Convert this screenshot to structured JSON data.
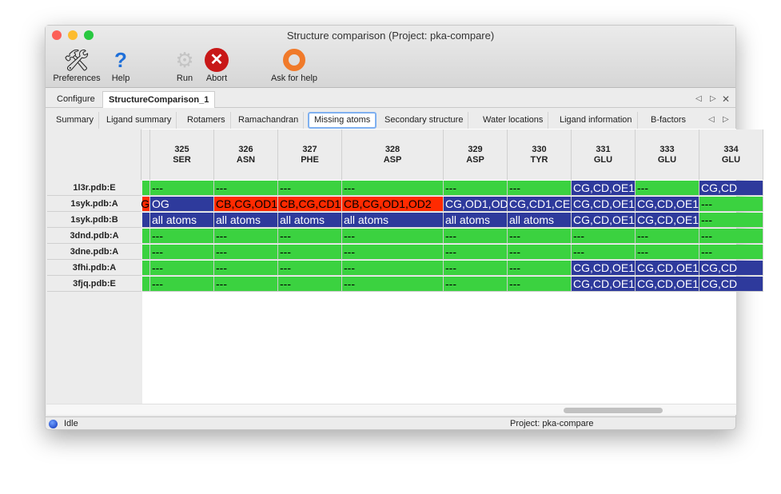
{
  "window": {
    "title": "Structure comparison (Project: pka-compare)"
  },
  "toolbar": [
    {
      "label": "Preferences",
      "icon": "tools-icon"
    },
    {
      "label": "Help",
      "icon": "help-icon"
    },
    {
      "label": "Run",
      "icon": "gear-icon"
    },
    {
      "label": "Abort",
      "icon": "abort-icon"
    },
    {
      "label": "Ask for help",
      "icon": "lifebuoy-icon"
    }
  ],
  "tabs": [
    "Configure",
    "StructureComparison_1"
  ],
  "subtabs": [
    "Summary",
    "Ligand summary",
    "Rotamers",
    "Ramachandran",
    "Missing atoms",
    "Secondary structure",
    "Water locations",
    "Ligand information",
    "B-factors"
  ],
  "selected_subtab": "Missing atoms",
  "colors": {
    "present": "#3bd240",
    "missing_side": "#2e3a9c",
    "missing_alt": "#ff2a00"
  },
  "table": {
    "columns": [
      {
        "num": "",
        "res": ""
      },
      {
        "num": "325",
        "res": "SER"
      },
      {
        "num": "326",
        "res": "ASN"
      },
      {
        "num": "327",
        "res": "PHE"
      },
      {
        "num": "328",
        "res": "ASP"
      },
      {
        "num": "329",
        "res": "ASP"
      },
      {
        "num": "330",
        "res": "TYR"
      },
      {
        "num": "331",
        "res": "GLU"
      },
      {
        "num": "333",
        "res": "GLU"
      },
      {
        "num": "334",
        "res": "GLU"
      }
    ],
    "rows": [
      {
        "label": "1l3r.pdb:E",
        "cells": [
          [
            "g",
            ""
          ],
          [
            "g",
            "---"
          ],
          [
            "g",
            "---"
          ],
          [
            "g",
            "---"
          ],
          [
            "g",
            "---"
          ],
          [
            "g",
            "---"
          ],
          [
            "g",
            "---"
          ],
          [
            "b",
            "CG,CD,OE1"
          ],
          [
            "g",
            "---"
          ],
          [
            "b",
            "CG,CD"
          ]
        ]
      },
      {
        "label": "1syk.pdb:A",
        "cells": [
          [
            "r",
            "G"
          ],
          [
            "b",
            "OG"
          ],
          [
            "r",
            "CB,CG,OD1"
          ],
          [
            "r",
            "CB,CG,CD1"
          ],
          [
            "r",
            "CB,CG,OD1,OD2"
          ],
          [
            "b",
            "CG,OD1,OD"
          ],
          [
            "b",
            "CG,CD1,CE"
          ],
          [
            "b",
            "CG,CD,OE1"
          ],
          [
            "b",
            "CG,CD,OE1"
          ],
          [
            "g",
            "---"
          ]
        ]
      },
      {
        "label": "1syk.pdb:B",
        "cells": [
          [
            "b",
            ""
          ],
          [
            "b",
            "all atoms"
          ],
          [
            "b",
            "all atoms"
          ],
          [
            "b",
            "all atoms"
          ],
          [
            "b",
            "all atoms"
          ],
          [
            "b",
            "all atoms"
          ],
          [
            "b",
            "all atoms"
          ],
          [
            "b",
            "CG,CD,OE1"
          ],
          [
            "b",
            "CG,CD,OE1"
          ],
          [
            "g",
            "---"
          ]
        ]
      },
      {
        "label": "3dnd.pdb:A",
        "cells": [
          [
            "g",
            ""
          ],
          [
            "g",
            "---"
          ],
          [
            "g",
            "---"
          ],
          [
            "g",
            "---"
          ],
          [
            "g",
            "---"
          ],
          [
            "g",
            "---"
          ],
          [
            "g",
            "---"
          ],
          [
            "g",
            "---"
          ],
          [
            "g",
            "---"
          ],
          [
            "g",
            "---"
          ]
        ]
      },
      {
        "label": "3dne.pdb:A",
        "cells": [
          [
            "g",
            ""
          ],
          [
            "g",
            "---"
          ],
          [
            "g",
            "---"
          ],
          [
            "g",
            "---"
          ],
          [
            "g",
            "---"
          ],
          [
            "g",
            "---"
          ],
          [
            "g",
            "---"
          ],
          [
            "g",
            "---"
          ],
          [
            "g",
            "---"
          ],
          [
            "g",
            "---"
          ]
        ]
      },
      {
        "label": "3fhi.pdb:A",
        "cells": [
          [
            "g",
            ""
          ],
          [
            "g",
            "---"
          ],
          [
            "g",
            "---"
          ],
          [
            "g",
            "---"
          ],
          [
            "g",
            "---"
          ],
          [
            "g",
            "---"
          ],
          [
            "g",
            "---"
          ],
          [
            "b",
            "CG,CD,OE1"
          ],
          [
            "b",
            "CG,CD,OE1"
          ],
          [
            "b",
            "CG,CD"
          ]
        ]
      },
      {
        "label": "3fjq.pdb:E",
        "cells": [
          [
            "g",
            ""
          ],
          [
            "g",
            "---"
          ],
          [
            "g",
            "---"
          ],
          [
            "g",
            "---"
          ],
          [
            "g",
            "---"
          ],
          [
            "g",
            "---"
          ],
          [
            "g",
            "---"
          ],
          [
            "b",
            "CG,CD,OE1"
          ],
          [
            "b",
            "CG,CD,OE1"
          ],
          [
            "b",
            "CG,CD"
          ]
        ]
      }
    ]
  },
  "status": {
    "state": "Idle",
    "project": "Project: pka-compare"
  }
}
